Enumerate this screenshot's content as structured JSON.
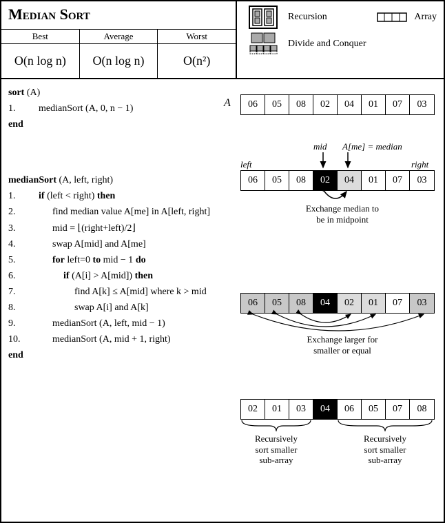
{
  "title": "Median Sort",
  "complexity": {
    "headers": [
      "Best",
      "Average",
      "Worst"
    ],
    "values": [
      "O(n log n)",
      "O(n log n)",
      "O(n²)"
    ]
  },
  "legend": {
    "recursion": "Recursion",
    "array": "Array",
    "divconq": "Divide and Conquer"
  },
  "code": {
    "sort_sig": "sort",
    "sort_arg": " (A)",
    "l1": "medianSort (A, 0, n − 1)",
    "end": "end",
    "ms_sig": "medianSort",
    "ms_arg": " (A, left, right)",
    "if_kw": "if",
    "if_cond": " (left < right) ",
    "then_kw": "then",
    "l2": "find median value A[me] in A[left, right]",
    "l3": "mid = ⌊(right+left)/2⌋",
    "l4": "swap A[mid] and A[me]",
    "for_kw": "for",
    "for_cond": " left=0 ",
    "to_kw": "to",
    "for_cond2": " mid − 1 ",
    "do_kw": "do",
    "if2_cond": " (A[i] > A[mid]) ",
    "l7": "find A[k] ≤ A[mid] where k > mid",
    "l8": "swap A[i] and A[k]",
    "l9": "medianSort (A, left, mid − 1)",
    "l10": "medianSort (A, mid + 1, right)"
  },
  "arrays": {
    "A_label": "A",
    "a1": [
      "06",
      "05",
      "08",
      "02",
      "04",
      "01",
      "07",
      "03"
    ],
    "a2": [
      "06",
      "05",
      "08",
      "02",
      "04",
      "01",
      "07",
      "03"
    ],
    "a2_styles": [
      "",
      "",
      "",
      "black",
      "lgray",
      "",
      "",
      ""
    ],
    "a3": [
      "06",
      "05",
      "08",
      "04",
      "02",
      "01",
      "07",
      "03"
    ],
    "a3_styles": [
      "gray",
      "gray",
      "gray",
      "black",
      "lgray",
      "lgray",
      "",
      "gray"
    ],
    "a4": [
      "02",
      "01",
      "03",
      "04",
      "06",
      "05",
      "07",
      "08"
    ],
    "a4_styles": [
      "",
      "",
      "",
      "black",
      "",
      "",
      "",
      ""
    ]
  },
  "labels": {
    "left": "left",
    "right": "right",
    "mid": "mid",
    "median": "A[me] = median",
    "cap1a": "Exchange median to",
    "cap1b": "be in midpoint",
    "cap2a": "Exchange larger for",
    "cap2b": "smaller or equal",
    "cap3a": "Recursively",
    "cap3b": "sort smaller",
    "cap3c": "sub-array"
  },
  "colors": {
    "black": "#000000",
    "gray": "#c8c8c8",
    "lgray": "#dcdcdc",
    "bg": "#ffffff"
  }
}
